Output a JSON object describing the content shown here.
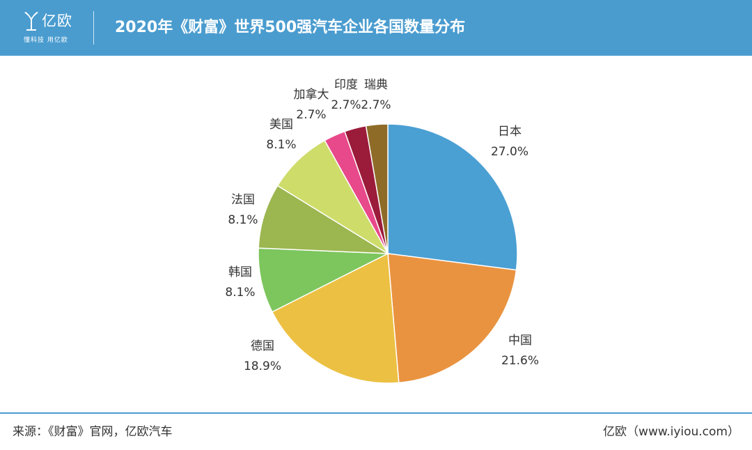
{
  "header": {
    "logo_name": "亿欧",
    "logo_tagline": "懂科技 用亿欧",
    "title": "2020年《财富》世界500强汽车企业各国数量分布"
  },
  "colors": {
    "header_bg": "#4a9ccf",
    "text": "#333333"
  },
  "chart_data": {
    "type": "pie",
    "slices": [
      {
        "label": "日本",
        "value": 27.0,
        "pct_label": "27.0%",
        "color": "#4a9fd3"
      },
      {
        "label": "中国",
        "value": 21.6,
        "pct_label": "21.6%",
        "color": "#e99340"
      },
      {
        "label": "德国",
        "value": 18.9,
        "pct_label": "18.9%",
        "color": "#ecc042"
      },
      {
        "label": "韩国",
        "value": 8.1,
        "pct_label": "8.1%",
        "color": "#7cc65d"
      },
      {
        "label": "法国",
        "value": 8.1,
        "pct_label": "8.1%",
        "color": "#9cb650"
      },
      {
        "label": "美国",
        "value": 8.1,
        "pct_label": "8.1%",
        "color": "#cedc6a"
      },
      {
        "label": "加拿大",
        "value": 2.7,
        "pct_label": "2.7%",
        "color": "#e8498a"
      },
      {
        "label": "印度",
        "value": 2.7,
        "pct_label": "2.7%",
        "color": "#9b1b3a"
      },
      {
        "label": "瑞典",
        "value": 2.7,
        "pct_label": "2.7%",
        "color": "#8e6c28"
      }
    ],
    "start": "12 o'clock",
    "direction": "clockwise",
    "legend": "none",
    "labels": "outside"
  },
  "footer": {
    "source": "来源：《财富》官网，亿欧汽车",
    "brand": "亿欧（www.iyiou.com）"
  }
}
